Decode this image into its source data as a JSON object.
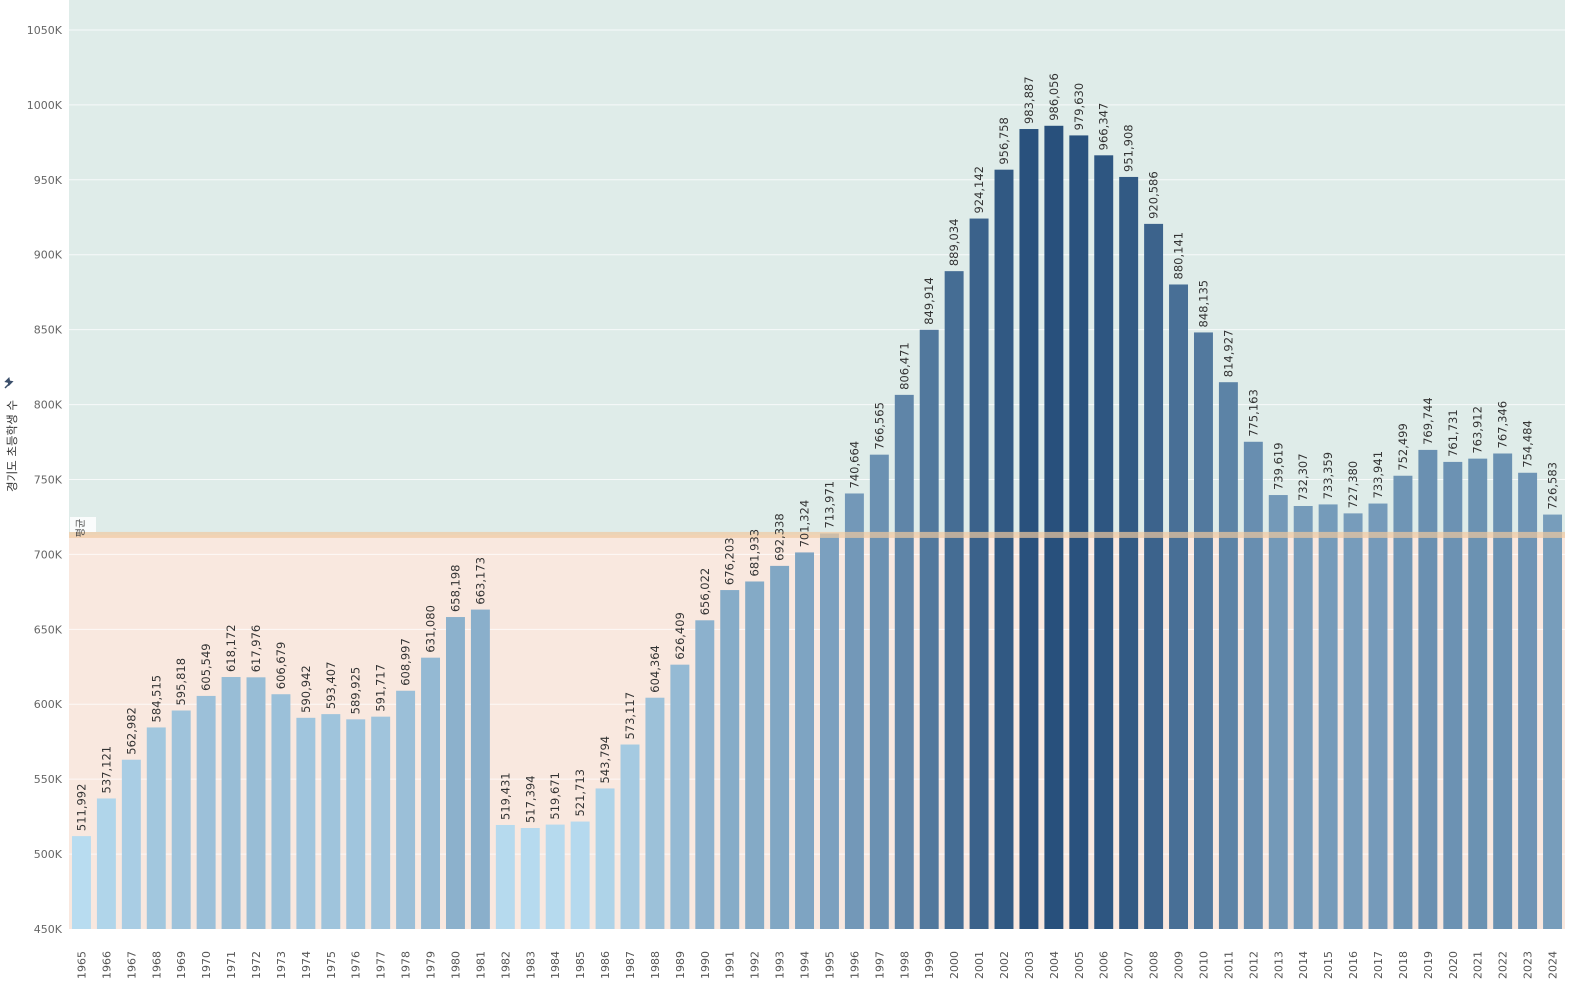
{
  "chart_data": {
    "type": "bar",
    "title": "",
    "xlabel": "",
    "ylabel": "경기도 초등학생 수",
    "ylim": [
      450000,
      1070000
    ],
    "yticks": [
      450000,
      500000,
      550000,
      600000,
      650000,
      700000,
      750000,
      800000,
      850000,
      900000,
      950000,
      1000000,
      1050000
    ],
    "ytick_labels": [
      "450K",
      "500K",
      "550K",
      "600K",
      "650K",
      "700K",
      "750K",
      "800K",
      "850K",
      "900K",
      "950K",
      "1000K",
      "1050K"
    ],
    "grid": true,
    "legend": "none",
    "reference_line": {
      "value": 713000,
      "label": "평균",
      "color": "#f0c9a0"
    },
    "bands": {
      "above_color": "#dfece9",
      "below_color": "#f9e8df"
    },
    "color_scale": {
      "low": "#b8dcf0",
      "high": "#28507c"
    },
    "sort_icon": "pin-icon",
    "categories": [
      "1965",
      "1966",
      "1967",
      "1968",
      "1969",
      "1970",
      "1971",
      "1972",
      "1973",
      "1974",
      "1975",
      "1976",
      "1977",
      "1978",
      "1979",
      "1980",
      "1981",
      "1982",
      "1983",
      "1984",
      "1985",
      "1986",
      "1987",
      "1988",
      "1989",
      "1990",
      "1991",
      "1992",
      "1993",
      "1994",
      "1995",
      "1996",
      "1997",
      "1998",
      "1999",
      "2000",
      "2001",
      "2002",
      "2003",
      "2004",
      "2005",
      "2006",
      "2007",
      "2008",
      "2009",
      "2010",
      "2011",
      "2012",
      "2013",
      "2014",
      "2015",
      "2016",
      "2017",
      "2018",
      "2019",
      "2020",
      "2021",
      "2022",
      "2023",
      "2024"
    ],
    "values": [
      511992,
      537121,
      562982,
      584515,
      595818,
      605549,
      618172,
      617976,
      606679,
      590942,
      593407,
      589925,
      591717,
      608997,
      631080,
      658198,
      663173,
      519431,
      517394,
      519671,
      521713,
      543794,
      573117,
      604364,
      626409,
      656022,
      676203,
      681933,
      692338,
      701324,
      713971,
      740664,
      766565,
      806471,
      849914,
      889034,
      924142,
      956758,
      983887,
      986056,
      979630,
      966347,
      951908,
      920586,
      880141,
      848135,
      814927,
      775163,
      739619,
      732307,
      733359,
      727380,
      733941,
      752499,
      769744,
      761731,
      763912,
      767346,
      754484,
      726583
    ],
    "value_labels": [
      "511,992",
      "537,121",
      "562,982",
      "584,515",
      "595,818",
      "605,549",
      "618,172",
      "617,976",
      "606,679",
      "590,942",
      "593,407",
      "589,925",
      "591,717",
      "608,997",
      "631,080",
      "658,198",
      "663,173",
      "519,431",
      "517,394",
      "519,671",
      "521,713",
      "543,794",
      "573,117",
      "604,364",
      "626,409",
      "656,022",
      "676,203",
      "681,933",
      "692,338",
      "701,324",
      "713,971",
      "740,664",
      "766,565",
      "806,471",
      "849,914",
      "889,034",
      "924,142",
      "956,758",
      "983,887",
      "986,056",
      "979,630",
      "966,347",
      "951,908",
      "920,586",
      "880,141",
      "848,135",
      "814,927",
      "775,163",
      "739,619",
      "732,307",
      "733,359",
      "727,380",
      "733,941",
      "752,499",
      "769,744",
      "761,731",
      "763,912",
      "767,346",
      "754,484",
      "726,583"
    ]
  }
}
